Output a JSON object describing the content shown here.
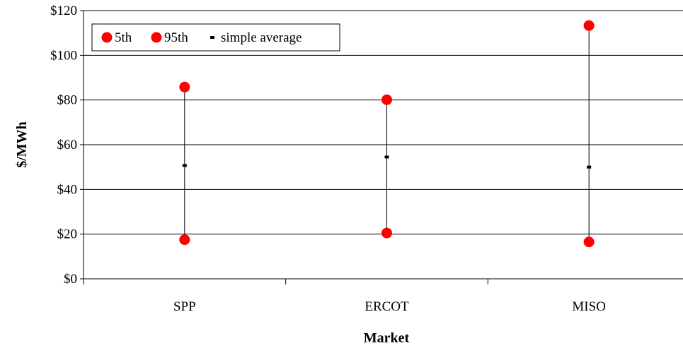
{
  "chart_data": {
    "type": "scatter",
    "title": "",
    "xlabel": "Market",
    "ylabel": "$/MWh",
    "categories": [
      "SPP",
      "ERCOT",
      "MISO"
    ],
    "series": [
      {
        "name": "5th",
        "values": [
          17.5,
          20.5,
          16.5
        ],
        "color": "#ff0000",
        "marker": "circle"
      },
      {
        "name": "95th",
        "values": [
          85.8,
          80.1,
          113.3
        ],
        "color": "#ff0000",
        "marker": "circle"
      },
      {
        "name": "simple average",
        "values": [
          50.7,
          54.5,
          50.0
        ],
        "color": "#000000",
        "marker": "dash"
      }
    ],
    "ylim": [
      0,
      120
    ],
    "yticks": [
      0,
      20,
      40,
      60,
      80,
      100,
      120
    ],
    "ytick_labels": [
      "$0",
      "$20",
      "$40",
      "$60",
      "$80",
      "$100",
      "$120"
    ],
    "grid": true,
    "legend_position": "top-left",
    "range_lines": true
  }
}
